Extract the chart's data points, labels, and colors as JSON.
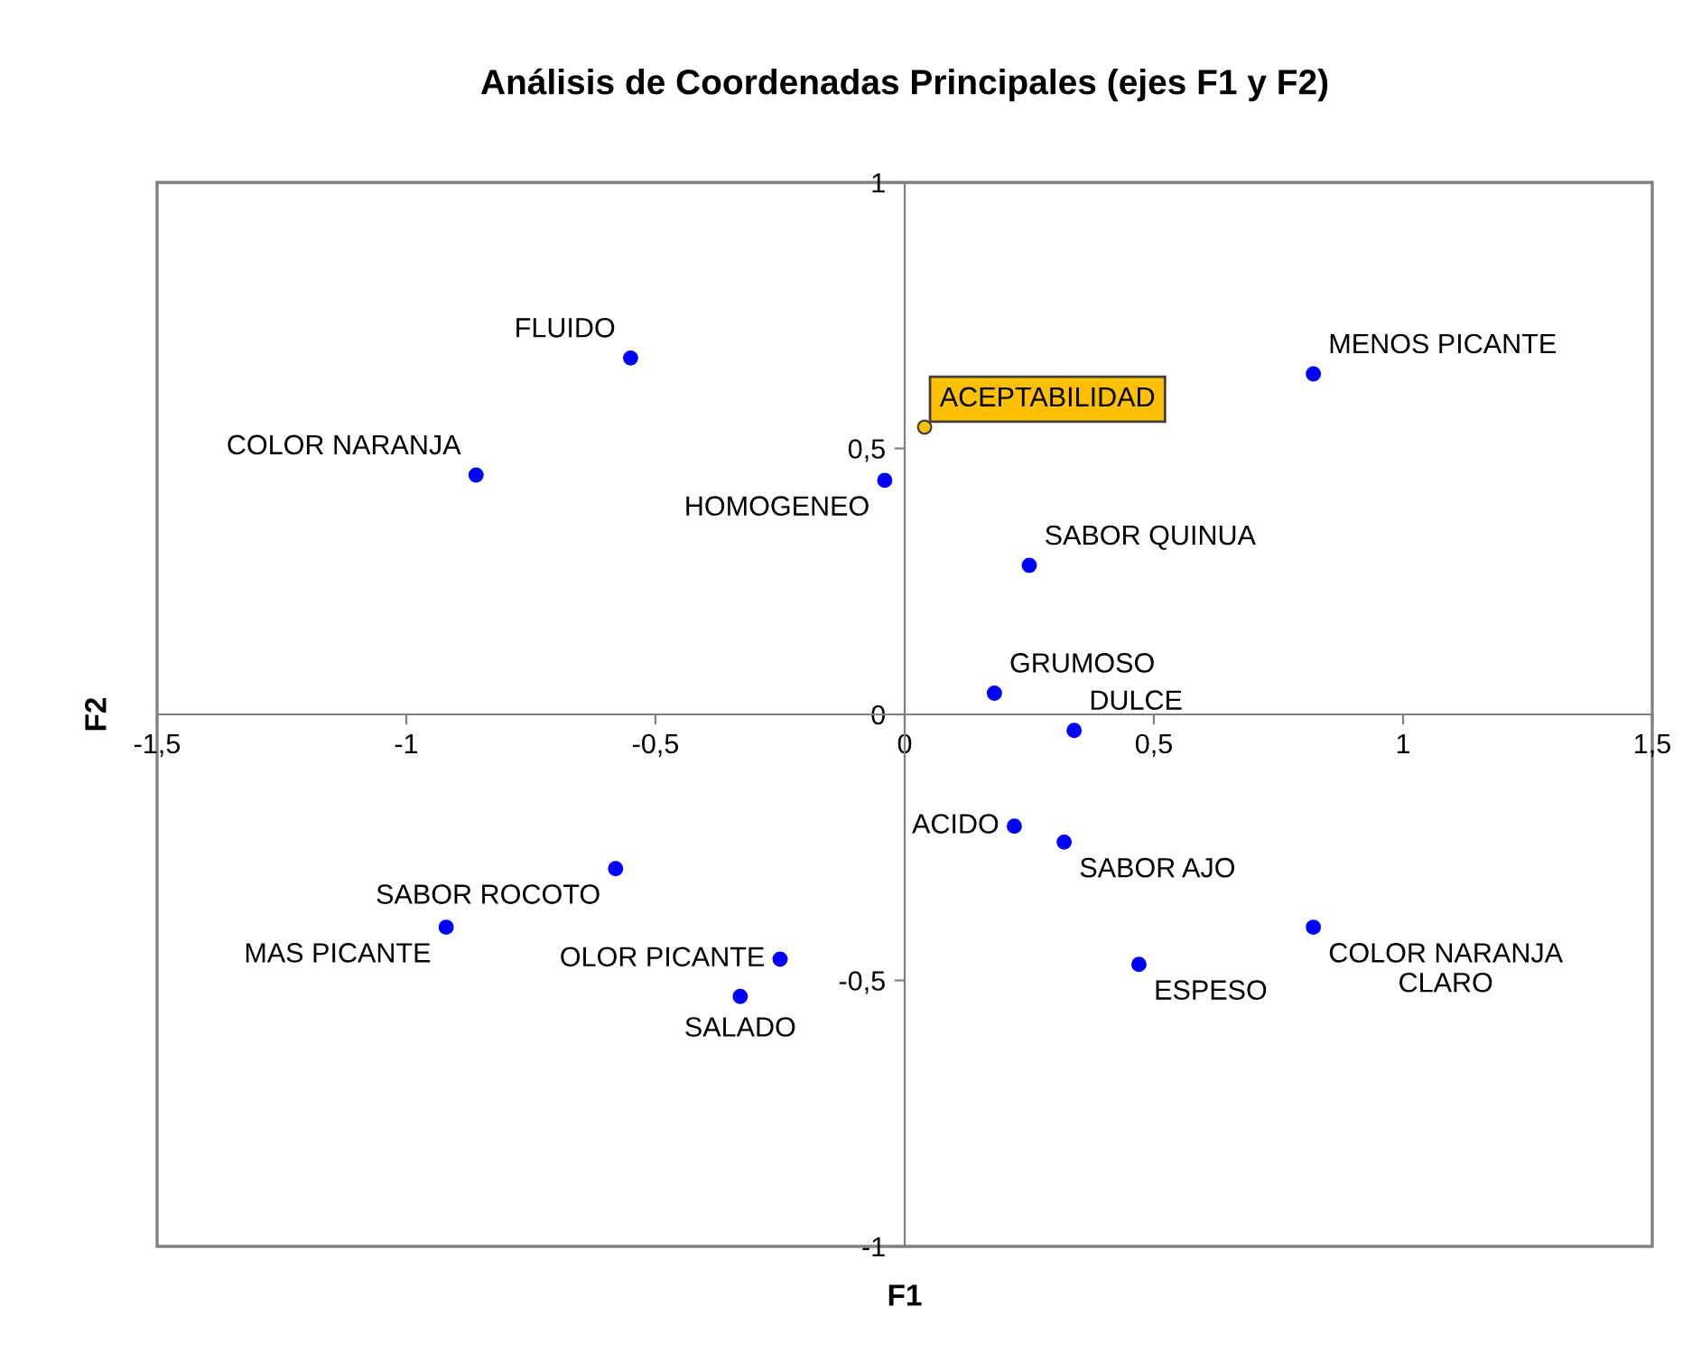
{
  "chart_data": {
    "type": "scatter",
    "title": "Análisis de Coordenadas Principales (ejes F1 y F2)",
    "xlabel": "F1",
    "ylabel": "F2",
    "xlim": [
      -1.5,
      1.5
    ],
    "ylim": [
      -1,
      1
    ],
    "xticks": [
      {
        "value": -1.5,
        "label": "-1,5"
      },
      -1,
      {
        "value": -0.5,
        "label": "-0,5"
      },
      0,
      {
        "value": 0.5,
        "label": "0,5"
      },
      1,
      {
        "value": 1.5,
        "label": "1,5"
      }
    ],
    "yticks": [
      -1,
      {
        "value": -0.5,
        "label": "-0,5"
      },
      0,
      {
        "value": 0.5,
        "label": "0,5"
      },
      1
    ],
    "grid": false,
    "legend": false,
    "marker": "circle",
    "series": [
      {
        "color": "#0000ff",
        "x": [
          -0.55,
          -0.86,
          -0.04,
          0.82,
          0.25,
          0.18,
          0.34,
          0.22,
          0.32,
          0.82,
          0.47,
          -0.58,
          -0.92,
          -0.33,
          -0.25
        ],
        "values": [
          0.67,
          0.45,
          0.44,
          0.64,
          0.28,
          0.04,
          -0.03,
          -0.21,
          -0.24,
          -0.4,
          -0.47,
          -0.29,
          -0.4,
          -0.53,
          -0.46
        ],
        "value_labels": [
          "FLUIDO",
          "COLOR NARANJA",
          "HOMOGENEO",
          "MENOS PICANTE",
          "SABOR QUINUA",
          "GRUMOSO",
          "DULCE",
          "ACIDO",
          "SABOR AJO",
          "COLOR NARANJA\nCLARO",
          "ESPESO",
          "SABOR ROCOTO",
          "MAS PICANTE",
          "SALADO",
          "OLOR PICANTE"
        ]
      },
      {
        "color": "#ffc000",
        "x": [
          0.04
        ],
        "values": [
          0.54
        ],
        "value_labels": [
          "ACEPTABILIDAD"
        ]
      }
    ]
  }
}
